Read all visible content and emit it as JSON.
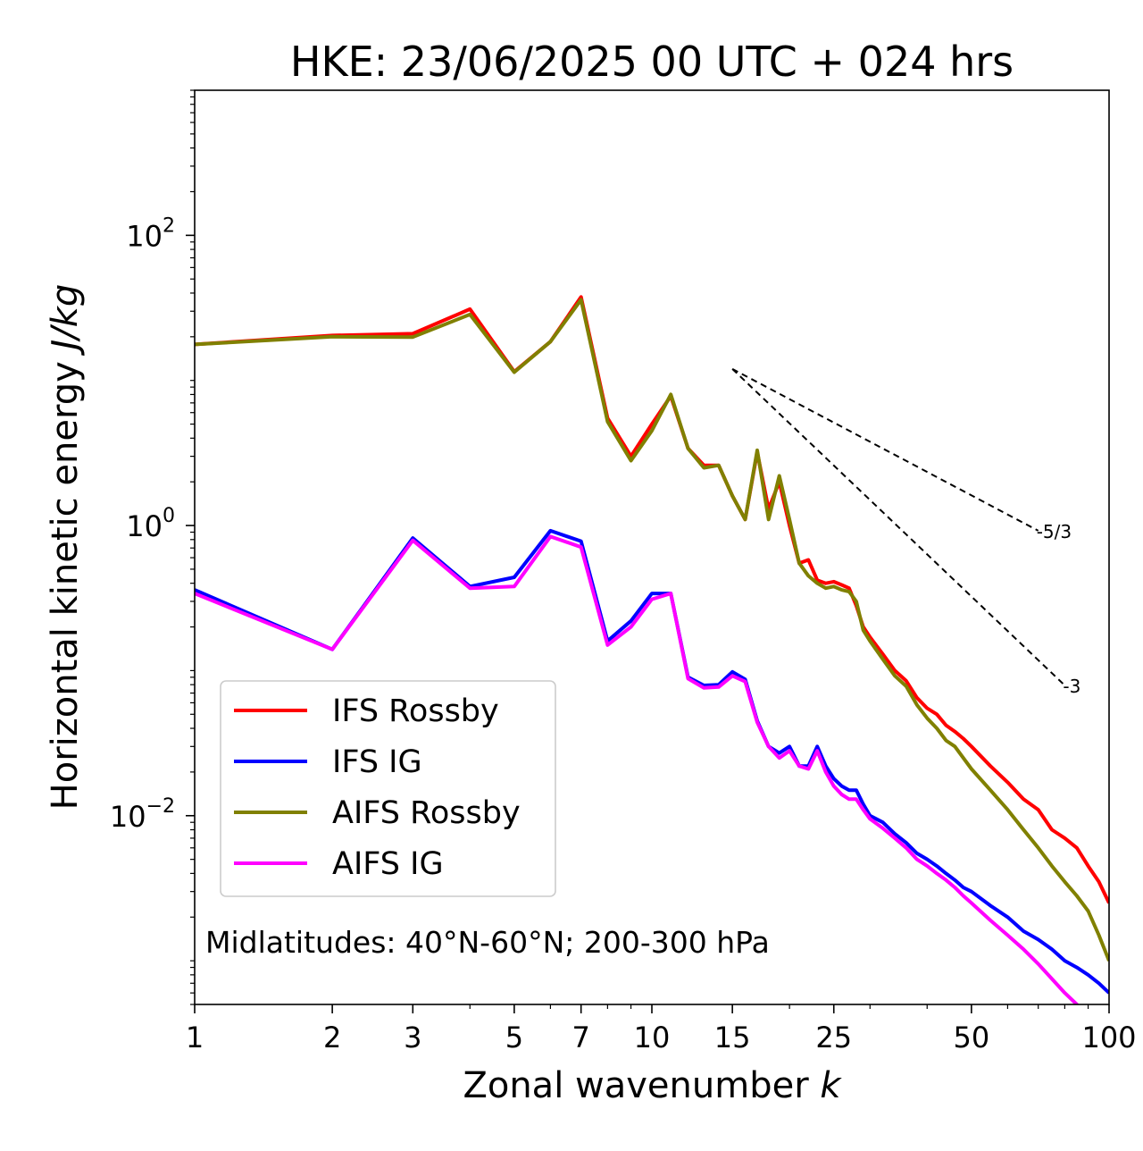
{
  "chart_data": {
    "type": "line",
    "title": "HKE: 23/06/2025 00 UTC + 024 hrs",
    "xlabel": "Zonal wavenumber",
    "xlabel_var": "k",
    "ylabel": "Horizontal kinetic energy",
    "ylabel_unit": "J/kg",
    "xscale": "log",
    "yscale": "log",
    "xlim": [
      1,
      100
    ],
    "ylim": [
      0.0005,
      1000
    ],
    "x_ticks": [
      1,
      2,
      3,
      5,
      7,
      10,
      15,
      25,
      50,
      100
    ],
    "x_tick_labels": [
      "1",
      "2",
      "3",
      "5",
      "7",
      "10",
      "15",
      "25",
      "50",
      "100"
    ],
    "y_ticks": [
      0.01,
      1,
      100
    ],
    "y_tick_labels": [
      {
        "base": "10",
        "exp": "−2"
      },
      {
        "base": "10",
        "exp": "0"
      },
      {
        "base": "10",
        "exp": "2"
      }
    ],
    "grid": false,
    "legend_position": "lower-left",
    "annotation": "Midlatitudes: 40°N-60°N; 200-300 hPa",
    "reference_lines": [
      {
        "label": "-5/3",
        "slope": -1.6667,
        "x": [
          15,
          70
        ],
        "y0": 12
      },
      {
        "label": "-3",
        "slope": -3,
        "x": [
          15,
          80
        ],
        "y0": 12
      }
    ],
    "series": [
      {
        "name": "IFS Rossby",
        "color": "#ff0000",
        "x": [
          1,
          2,
          3,
          4,
          5,
          6,
          7,
          8,
          9,
          10,
          11,
          12,
          13,
          14,
          15,
          16,
          17,
          18,
          19,
          20,
          21,
          22,
          23,
          24,
          25,
          26,
          27,
          28,
          29,
          30,
          32,
          34,
          36,
          38,
          40,
          42,
          44,
          46,
          48,
          50,
          55,
          60,
          65,
          70,
          75,
          80,
          85,
          90,
          95,
          100
        ],
        "y": [
          17.7,
          20.4,
          21,
          31,
          11.5,
          18.5,
          37.6,
          5.5,
          3.0,
          5.0,
          7.8,
          3.4,
          2.6,
          2.6,
          1.6,
          1.1,
          3.2,
          1.3,
          2.0,
          1.0,
          0.55,
          0.58,
          0.42,
          0.4,
          0.41,
          0.39,
          0.37,
          0.28,
          0.2,
          0.17,
          0.13,
          0.1,
          0.085,
          0.065,
          0.055,
          0.05,
          0.042,
          0.038,
          0.034,
          0.03,
          0.022,
          0.017,
          0.013,
          0.011,
          0.008,
          0.007,
          0.006,
          0.0045,
          0.0035,
          0.0025
        ]
      },
      {
        "name": "IFS IG",
        "color": "#0000ff",
        "x": [
          1,
          2,
          3,
          4,
          5,
          6,
          7,
          8,
          9,
          10,
          11,
          12,
          13,
          14,
          15,
          16,
          17,
          18,
          19,
          20,
          21,
          22,
          23,
          24,
          25,
          26,
          27,
          28,
          29,
          30,
          32,
          34,
          36,
          38,
          40,
          42,
          44,
          46,
          48,
          50,
          55,
          60,
          65,
          70,
          75,
          80,
          85,
          90,
          95,
          100
        ],
        "y": [
          0.36,
          0.14,
          0.82,
          0.38,
          0.44,
          0.92,
          0.78,
          0.16,
          0.22,
          0.34,
          0.34,
          0.09,
          0.079,
          0.08,
          0.098,
          0.087,
          0.045,
          0.03,
          0.027,
          0.03,
          0.022,
          0.022,
          0.03,
          0.022,
          0.018,
          0.016,
          0.015,
          0.015,
          0.012,
          0.01,
          0.009,
          0.0075,
          0.0065,
          0.0055,
          0.005,
          0.0045,
          0.004,
          0.0036,
          0.0032,
          0.003,
          0.0024,
          0.002,
          0.0016,
          0.0014,
          0.0012,
          0.001,
          0.0009,
          0.0008,
          0.0007,
          0.0006
        ]
      },
      {
        "name": "AIFS Rossby",
        "color": "#808000",
        "x": [
          1,
          2,
          3,
          4,
          5,
          6,
          7,
          8,
          9,
          10,
          11,
          12,
          13,
          14,
          15,
          16,
          17,
          18,
          19,
          20,
          21,
          22,
          23,
          24,
          25,
          26,
          27,
          28,
          29,
          30,
          32,
          34,
          36,
          38,
          40,
          42,
          44,
          46,
          48,
          50,
          55,
          60,
          65,
          70,
          75,
          80,
          85,
          90,
          95,
          100
        ],
        "y": [
          17.7,
          20,
          19.9,
          28.5,
          11.4,
          18.5,
          36,
          5.2,
          2.8,
          4.5,
          8.0,
          3.4,
          2.5,
          2.6,
          1.6,
          1.1,
          3.3,
          1.1,
          2.2,
          1.1,
          0.55,
          0.45,
          0.4,
          0.37,
          0.38,
          0.36,
          0.35,
          0.3,
          0.19,
          0.16,
          0.12,
          0.092,
          0.078,
          0.058,
          0.047,
          0.04,
          0.033,
          0.03,
          0.025,
          0.021,
          0.015,
          0.011,
          0.008,
          0.006,
          0.0045,
          0.0035,
          0.0028,
          0.0022,
          0.0015,
          0.001
        ]
      },
      {
        "name": "AIFS IG",
        "color": "#ff00ff",
        "x": [
          1,
          2,
          3,
          4,
          5,
          6,
          7,
          8,
          9,
          10,
          11,
          12,
          13,
          14,
          15,
          16,
          17,
          18,
          19,
          20,
          21,
          22,
          23,
          24,
          25,
          26,
          27,
          28,
          29,
          30,
          32,
          34,
          36,
          38,
          40,
          42,
          44,
          46,
          48,
          50,
          55,
          60,
          65,
          70,
          75,
          80,
          85,
          90,
          95,
          100
        ],
        "y": [
          0.34,
          0.14,
          0.79,
          0.37,
          0.38,
          0.84,
          0.71,
          0.15,
          0.2,
          0.31,
          0.34,
          0.088,
          0.076,
          0.077,
          0.092,
          0.084,
          0.044,
          0.03,
          0.025,
          0.028,
          0.022,
          0.021,
          0.028,
          0.02,
          0.016,
          0.014,
          0.013,
          0.013,
          0.011,
          0.0095,
          0.0082,
          0.007,
          0.006,
          0.005,
          0.0045,
          0.004,
          0.0036,
          0.0032,
          0.0028,
          0.0025,
          0.0019,
          0.0015,
          0.0012,
          0.00095,
          0.00075,
          0.0006,
          0.0005,
          0.0004,
          0.00032,
          0.00025
        ]
      }
    ]
  }
}
